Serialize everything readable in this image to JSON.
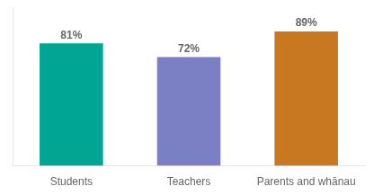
{
  "chart_data": {
    "type": "bar",
    "categories": [
      "Students",
      "Teachers",
      "Parents and whānau"
    ],
    "values": [
      81,
      72,
      89
    ],
    "value_labels": [
      "81%",
      "72%",
      "89%"
    ],
    "colors": [
      "#00A693",
      "#7B7FC4",
      "#C87820"
    ],
    "ylim": [
      0,
      105
    ],
    "grid": false,
    "legend": false,
    "data_labels": true,
    "tick_labels": "x"
  }
}
